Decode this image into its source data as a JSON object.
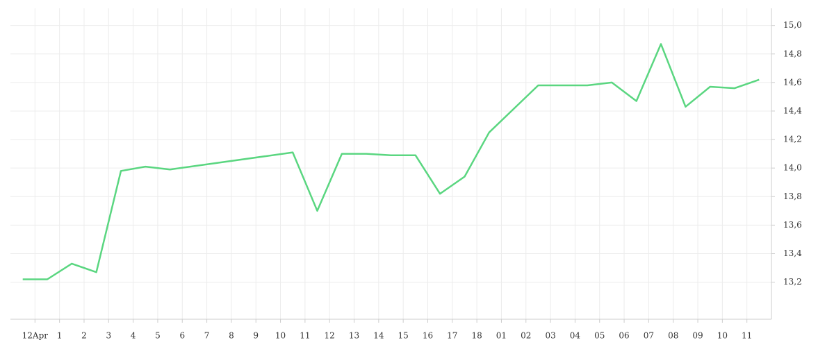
{
  "chart_data": {
    "type": "line",
    "x": [
      -0.5,
      0.5,
      1.5,
      2.5,
      3.5,
      4.5,
      5.5,
      10.5,
      11.5,
      12.5,
      13.5,
      14.5,
      15.5,
      16.5,
      17.5,
      18.5,
      20.5,
      21.5,
      22.5,
      23.5,
      24.5,
      25.5,
      26.5,
      27.5,
      28.5,
      29.5
    ],
    "values": [
      13.22,
      13.22,
      13.33,
      13.27,
      13.98,
      14.01,
      13.99,
      14.11,
      13.7,
      14.1,
      14.1,
      14.09,
      14.09,
      13.82,
      13.94,
      14.25,
      14.58,
      14.58,
      14.58,
      14.6,
      14.47,
      14.87,
      14.43,
      14.57,
      14.56,
      14.62
    ],
    "color": "#5ad680",
    "xlim": [
      -1,
      30
    ],
    "xticks": [
      {
        "value": 0,
        "label": "12Apr"
      },
      1,
      2,
      3,
      4,
      5,
      6,
      7,
      8,
      9,
      10,
      11,
      12,
      13,
      14,
      15,
      16,
      17,
      18,
      {
        "value": 19,
        "label": "01"
      },
      {
        "value": 20,
        "label": "02"
      },
      {
        "value": 21,
        "label": "03"
      },
      {
        "value": 22,
        "label": "04"
      },
      {
        "value": 23,
        "label": "05"
      },
      {
        "value": 24,
        "label": "06"
      },
      {
        "value": 25,
        "label": "07"
      },
      {
        "value": 26,
        "label": "08"
      },
      {
        "value": 27,
        "label": "09"
      },
      {
        "value": 28,
        "label": "10"
      },
      {
        "value": 29,
        "label": "11"
      }
    ],
    "ylim": [
      12.94,
      15.12
    ],
    "yticks": [
      {
        "value": 13.2,
        "label": "13,2"
      },
      {
        "value": 13.4,
        "label": "13,4"
      },
      {
        "value": 13.6,
        "label": "13,6"
      },
      {
        "value": 13.8,
        "label": "13,8"
      },
      {
        "value": 14.0,
        "label": "14,0"
      },
      {
        "value": 14.2,
        "label": "14,2"
      },
      {
        "value": 14.4,
        "label": "14,4"
      },
      {
        "value": 14.6,
        "label": "14,6"
      },
      {
        "value": 14.8,
        "label": "14,8"
      },
      {
        "value": 15.0,
        "label": "15,0"
      }
    ],
    "grid": true
  }
}
